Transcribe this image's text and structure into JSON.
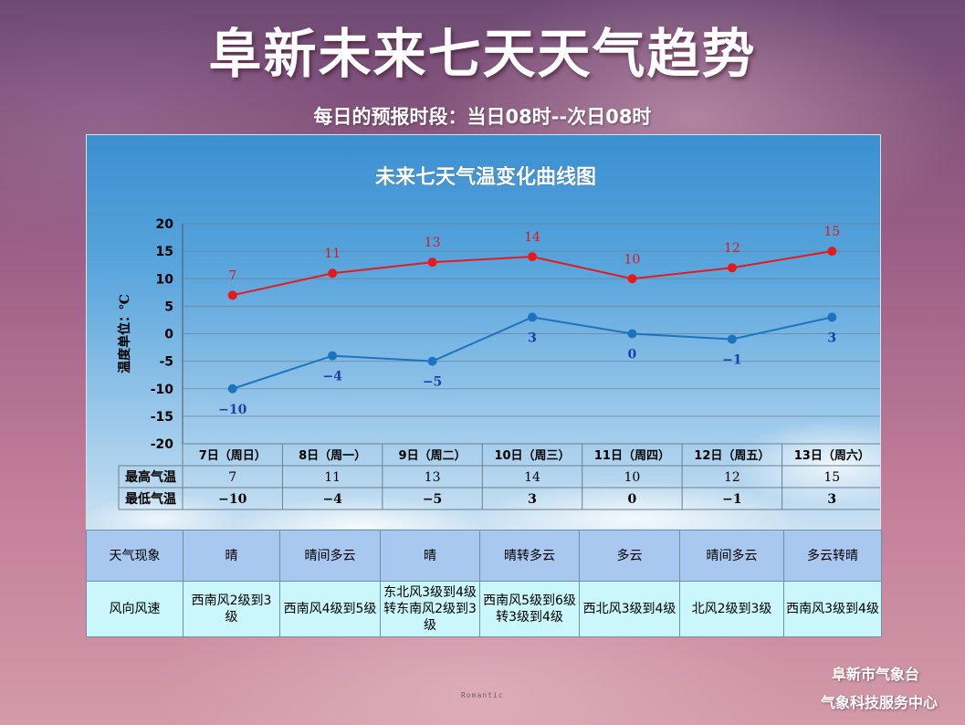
{
  "header": {
    "title": "阜新未来七天天气趋势",
    "subtitle": "每日的预报时段：当日08时--次日08时"
  },
  "chart_data": {
    "type": "line",
    "title": "未来七天气温变化曲线图",
    "xlabel": "",
    "ylabel": "温度单位：℃",
    "ylim": [
      -20,
      20
    ],
    "yticks": [
      20,
      15,
      10,
      5,
      0,
      -5,
      -10,
      -15,
      -20
    ],
    "categories": [
      "7日（周日）",
      "8日（周一）",
      "9日（周二）",
      "10日（周三）",
      "11日（周四）",
      "12日（周五）",
      "13日（周六）"
    ],
    "series": [
      {
        "name": "最高气温",
        "values": [
          7,
          11,
          13,
          14,
          10,
          12,
          15
        ],
        "color": "#e41a1c"
      },
      {
        "name": "最低气温",
        "values": [
          -10,
          -4,
          -5,
          3,
          0,
          -1,
          3
        ],
        "color": "#1e73be"
      }
    ],
    "high_label_display": [
      "7",
      "11",
      "13",
      "14",
      "10",
      "12",
      "15"
    ],
    "low_label_display": [
      "−10",
      "−4",
      "−5",
      "3",
      "0",
      "−1",
      "3"
    ],
    "grid": true,
    "legend": "none"
  },
  "colors": {
    "high_series": "#e41a1c",
    "low_series": "#1e73be",
    "weather_row_bg": "#a8c8ef",
    "wind_row_bg": "#c9f7fb"
  },
  "weather_table": {
    "weather_label": "天气现象",
    "wind_label": "风向风速",
    "weather": [
      "晴",
      "晴间多云",
      "晴",
      "晴转多云",
      "多云",
      "晴间多云",
      "多云转晴"
    ],
    "wind": [
      "西南风2级到3级",
      "西南风4级到5级",
      "东北风3级到4级转东南风2级到3级",
      "西南风5级到6级转3级到4级",
      "西北风3级到4级",
      "北风2级到3级",
      "西南风3级到4级"
    ]
  },
  "footer": {
    "org_line1": "阜新市气象台",
    "org_line2": "气象科技服务中心",
    "watermark": "Romantic"
  }
}
